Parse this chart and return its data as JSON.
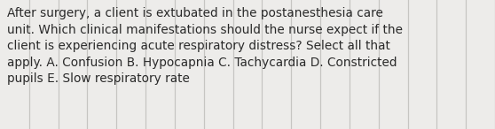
{
  "text": "After surgery, a client is extubated in the postanesthesia care\nunit. Which clinical manifestations should the nurse expect if the\nclient is experiencing acute respiratory distress? Select all that\napply. A. Confusion B. Hypocapnia C. Tachycardia D. Constricted\npupils E. Slow respiratory rate",
  "background_color": "#edecea",
  "line_color": "#c0bfbc",
  "text_color": "#2a2a2a",
  "font_size": 9.8,
  "num_vertical_lines": 16,
  "fig_width": 5.58,
  "fig_height": 1.46,
  "dpi": 100
}
